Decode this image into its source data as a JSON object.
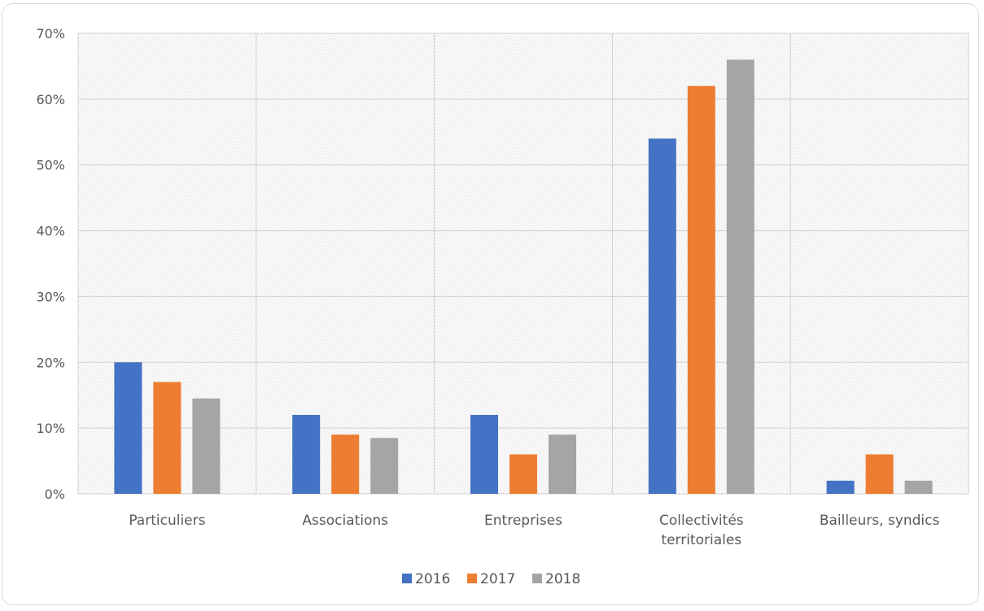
{
  "chart_data": {
    "type": "bar",
    "categories": [
      [
        "Particuliers"
      ],
      [
        "Associations"
      ],
      [
        "Entreprises"
      ],
      [
        "Collectivités",
        "territoriales"
      ],
      [
        "Bailleurs, syndics"
      ]
    ],
    "series": [
      {
        "name": "2016",
        "color": "#4472c4",
        "values": [
          20,
          12,
          12,
          54,
          2
        ]
      },
      {
        "name": "2017",
        "color": "#ed7d31",
        "values": [
          17,
          9,
          6,
          62,
          6
        ]
      },
      {
        "name": "2018",
        "color": "#a5a5a5",
        "values": [
          14.5,
          8.5,
          9,
          66,
          2
        ]
      }
    ],
    "y_ticks": [
      "0%",
      "10%",
      "20%",
      "30%",
      "40%",
      "50%",
      "60%",
      "70%"
    ],
    "ylim": [
      0,
      70
    ],
    "grid": true,
    "legend_position": "bottom",
    "title": "",
    "xlabel": "",
    "ylabel": ""
  }
}
